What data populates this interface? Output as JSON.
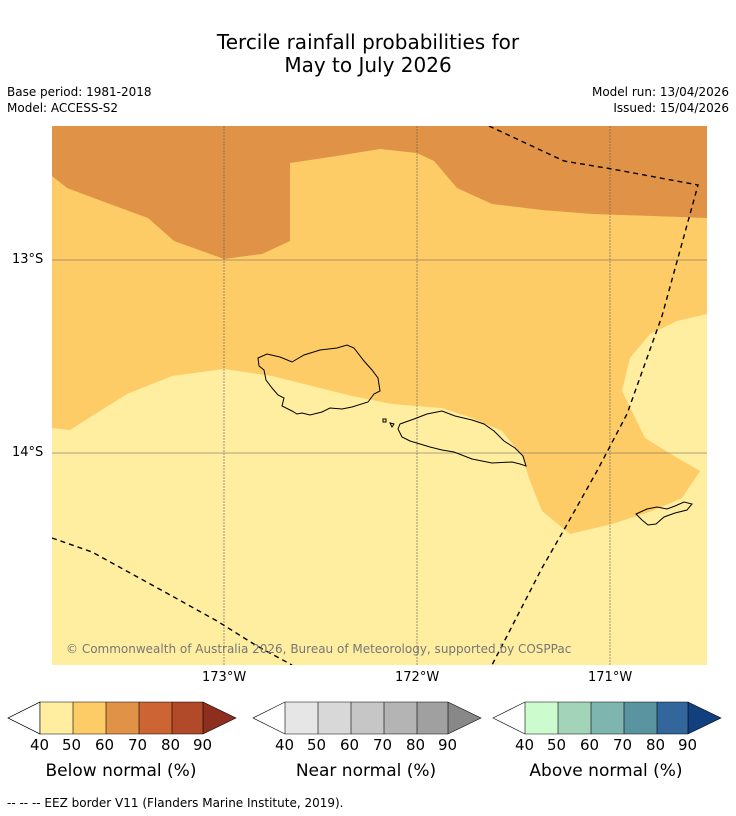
{
  "header": {
    "title_line1": "Tercile rainfall probabilities for",
    "title_line2": "May to July 2026",
    "base_period": "Base period: 1981-2018",
    "model": "Model: ACCESS-S2",
    "model_run": "Model run: 13/04/2026",
    "issued": "Issued: 15/04/2026"
  },
  "map": {
    "lat_labels": [
      "13°S",
      "14°S"
    ],
    "lon_labels": [
      "173°W",
      "172°W",
      "171°W"
    ],
    "copyright": "© Commonwealth of Australia 2026, Bureau of Meteorology, supported by COSPPac",
    "colors": {
      "below_40_50": "#ffeda0",
      "below_50_60": "#fecc67",
      "below_60_70": "#e09347"
    }
  },
  "colorbars": [
    {
      "title": "Below normal (%)",
      "ticks": [
        "40",
        "50",
        "60",
        "70",
        "80",
        "90"
      ],
      "colors": [
        "#ffeda0",
        "#fecc67",
        "#e09347",
        "#cc6434",
        "#b04a28",
        "#8e2e1e"
      ]
    },
    {
      "title": "Near normal (%)",
      "ticks": [
        "40",
        "50",
        "60",
        "70",
        "80",
        "90"
      ],
      "colors": [
        "#e6e6e6",
        "#d8d8d8",
        "#c6c6c6",
        "#b4b4b4",
        "#a0a0a0",
        "#888888"
      ]
    },
    {
      "title": "Above normal (%)",
      "ticks": [
        "40",
        "50",
        "60",
        "70",
        "80",
        "90"
      ],
      "colors": [
        "#ccfccd",
        "#a3d4b9",
        "#7eb5ae",
        "#5a94a0",
        "#33679b",
        "#123f7e"
      ]
    }
  ],
  "footnote": "--  --  -- EEZ border V11 (Flanders Marine Institute, 2019)."
}
